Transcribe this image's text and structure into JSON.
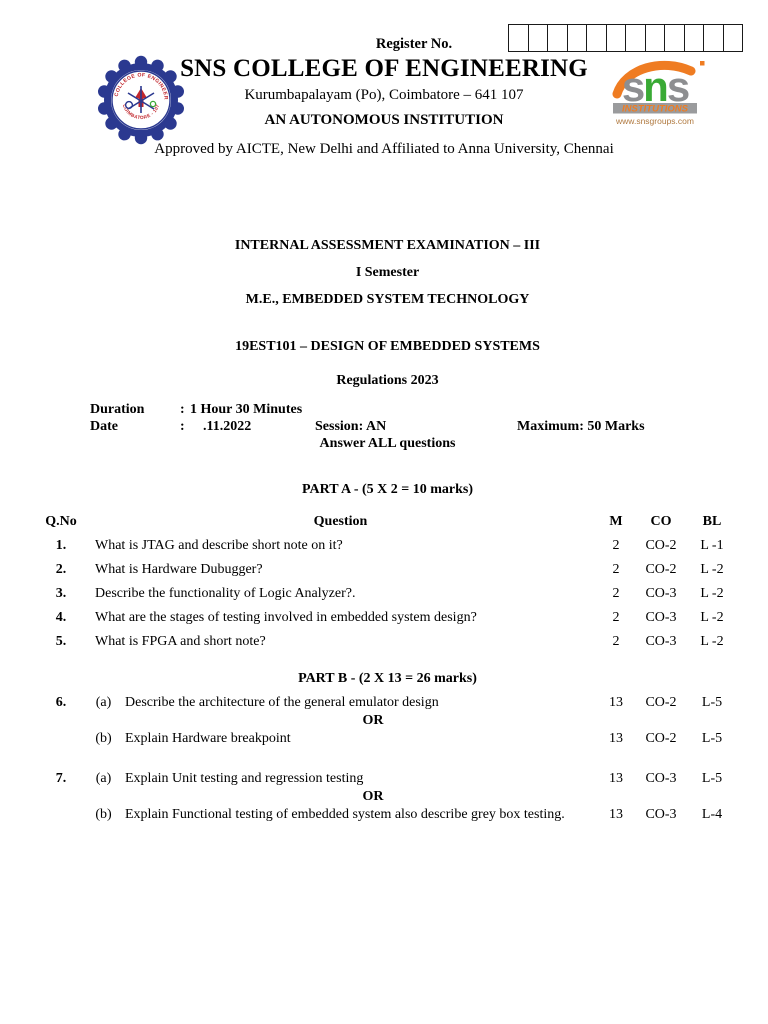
{
  "header": {
    "register_label": "Register No.",
    "register_cell_count": 12,
    "college_name": "SNS COLLEGE OF ENGINEERING",
    "address": "Kurumbapalayam (Po), Coimbatore – 641 107",
    "autonomous": "AN AUTONOMOUS INSTITUTION",
    "approved": "Approved by AICTE, New Delhi and Affiliated to Anna University, Chennai",
    "college_logo": {
      "icon": "college-gear-emblem-logo",
      "ring_top": "SNS COLLEGE OF ENGINEERING",
      "ring_bottom": "COIMBATORE - 107",
      "blue": "#2b3990",
      "red": "#c1272d"
    },
    "sns_logo": {
      "icon": "sns-institutions-logo",
      "s1": "s",
      "n": "n",
      "s2": "s",
      "band": "INSTITUTIONS",
      "website": "www.snsgroups.com",
      "gray": "#8d8e90",
      "green": "#3aaa35",
      "orange": "#ef7c22"
    }
  },
  "exam": {
    "title": "INTERNAL ASSESSMENT EXAMINATION – III",
    "semester": "I Semester",
    "program": "M.E., EMBEDDED SYSTEM TECHNOLOGY",
    "course": "19EST101 – DESIGN OF EMBEDDED SYSTEMS",
    "regulations": "Regulations 2023"
  },
  "meta": {
    "duration_label": "Duration",
    "duration_colon": ":",
    "duration_value": "1 Hour 30 Minutes",
    "date_label": "Date",
    "date_colon": ":",
    "date_value": ".11.2022",
    "session": "Session: AN",
    "maximum": "Maximum: 50 Marks",
    "answer_note": "Answer ALL questions"
  },
  "part_a": {
    "heading": "PART A - (5 X 2 = 10 marks)",
    "columns": {
      "qno": "Q.No",
      "question": "Question",
      "m": "M",
      "co": "CO",
      "bl": "BL"
    },
    "rows": [
      {
        "no": "1.",
        "question": "What is JTAG and describe short note on it?",
        "m": "2",
        "co": "CO-2",
        "bl": "L -1"
      },
      {
        "no": "2.",
        "question": "What is Hardware Dubugger?",
        "m": "2",
        "co": "CO-2",
        "bl": "L -2"
      },
      {
        "no": "3.",
        "question": "Describe the functionality of Logic Analyzer?.",
        "m": "2",
        "co": "CO-3",
        "bl": "L -2"
      },
      {
        "no": "4.",
        "question": "What are the stages of testing involved in embedded system design?",
        "m": "2",
        "co": "CO-3",
        "bl": "L -2"
      },
      {
        "no": "5.",
        "question": "What is FPGA and short note?",
        "m": "2",
        "co": "CO-3",
        "bl": "L -2"
      }
    ]
  },
  "part_b": {
    "heading": "PART B - (2 X 13 = 26 marks)",
    "or_label": "OR",
    "questions": [
      {
        "no": "6.",
        "a": {
          "label": "(a)",
          "text": "Describe the architecture of the general emulator design",
          "m": "13",
          "co": "CO-2",
          "bl": "L-5"
        },
        "b": {
          "label": "(b)",
          "text": "Explain Hardware breakpoint",
          "m": "13",
          "co": "CO-2",
          "bl": "L-5"
        }
      },
      {
        "no": "7.",
        "a": {
          "label": "(a)",
          "text": "Explain Unit testing and regression testing",
          "m": "13",
          "co": "CO-3",
          "bl": "L-5"
        },
        "b": {
          "label": "(b)",
          "text": "Explain Functional testing of embedded system also describe grey box testing.",
          "m": "13",
          "co": "CO-3",
          "bl": "L-4"
        }
      }
    ]
  }
}
